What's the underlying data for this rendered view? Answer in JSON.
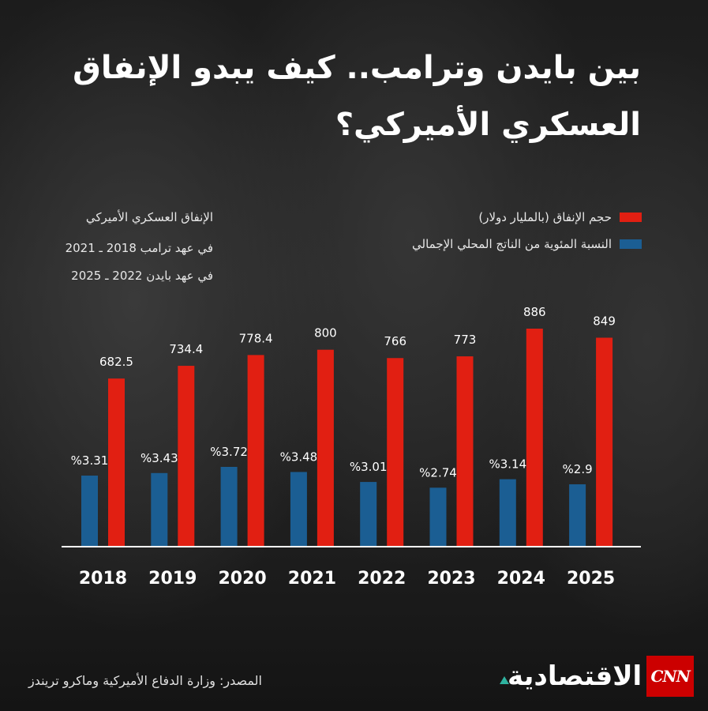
{
  "title_line1": "بين بايدن وترامب.. كيف يبدو الإنفاق",
  "title_line2": "العسكري الأميركي؟",
  "note": {
    "line1": "الإنفاق العسكري الأميركي",
    "line2": "في عهد ترامب 2018 ـ 2021",
    "line3": "في عهد بايدن 2022 ـ 2025"
  },
  "source": "المصدر: وزارة الدفاع الأميركية وماكرو تريندز",
  "brand": {
    "name": "الاقتصادية",
    "logo_text": "CNN"
  },
  "colors": {
    "spending": "#e11f12",
    "gdp": "#1b5e93"
  },
  "chart_data": {
    "type": "bar",
    "categories": [
      "2018",
      "2019",
      "2020",
      "2021",
      "2022",
      "2023",
      "2024",
      "2025"
    ],
    "series": [
      {
        "name": "حجم الإنفاق (بالمليار دولار)",
        "values": [
          682.5,
          734.4,
          778.4,
          800,
          766,
          773,
          886,
          849
        ],
        "labels": [
          "682.5",
          "734.4",
          "778.4",
          "800",
          "766",
          "773",
          "886",
          "849"
        ]
      },
      {
        "name": "النسبة المئوية من الناتج المحلي الإجمالي",
        "values": [
          3.31,
          3.43,
          3.72,
          3.48,
          3.01,
          2.74,
          3.14,
          2.9
        ],
        "labels": [
          "%3.31",
          "%3.43",
          "%3.72",
          "%3.48",
          "%3.01",
          "%2.74",
          "%3.14",
          "%2.9"
        ]
      }
    ]
  }
}
